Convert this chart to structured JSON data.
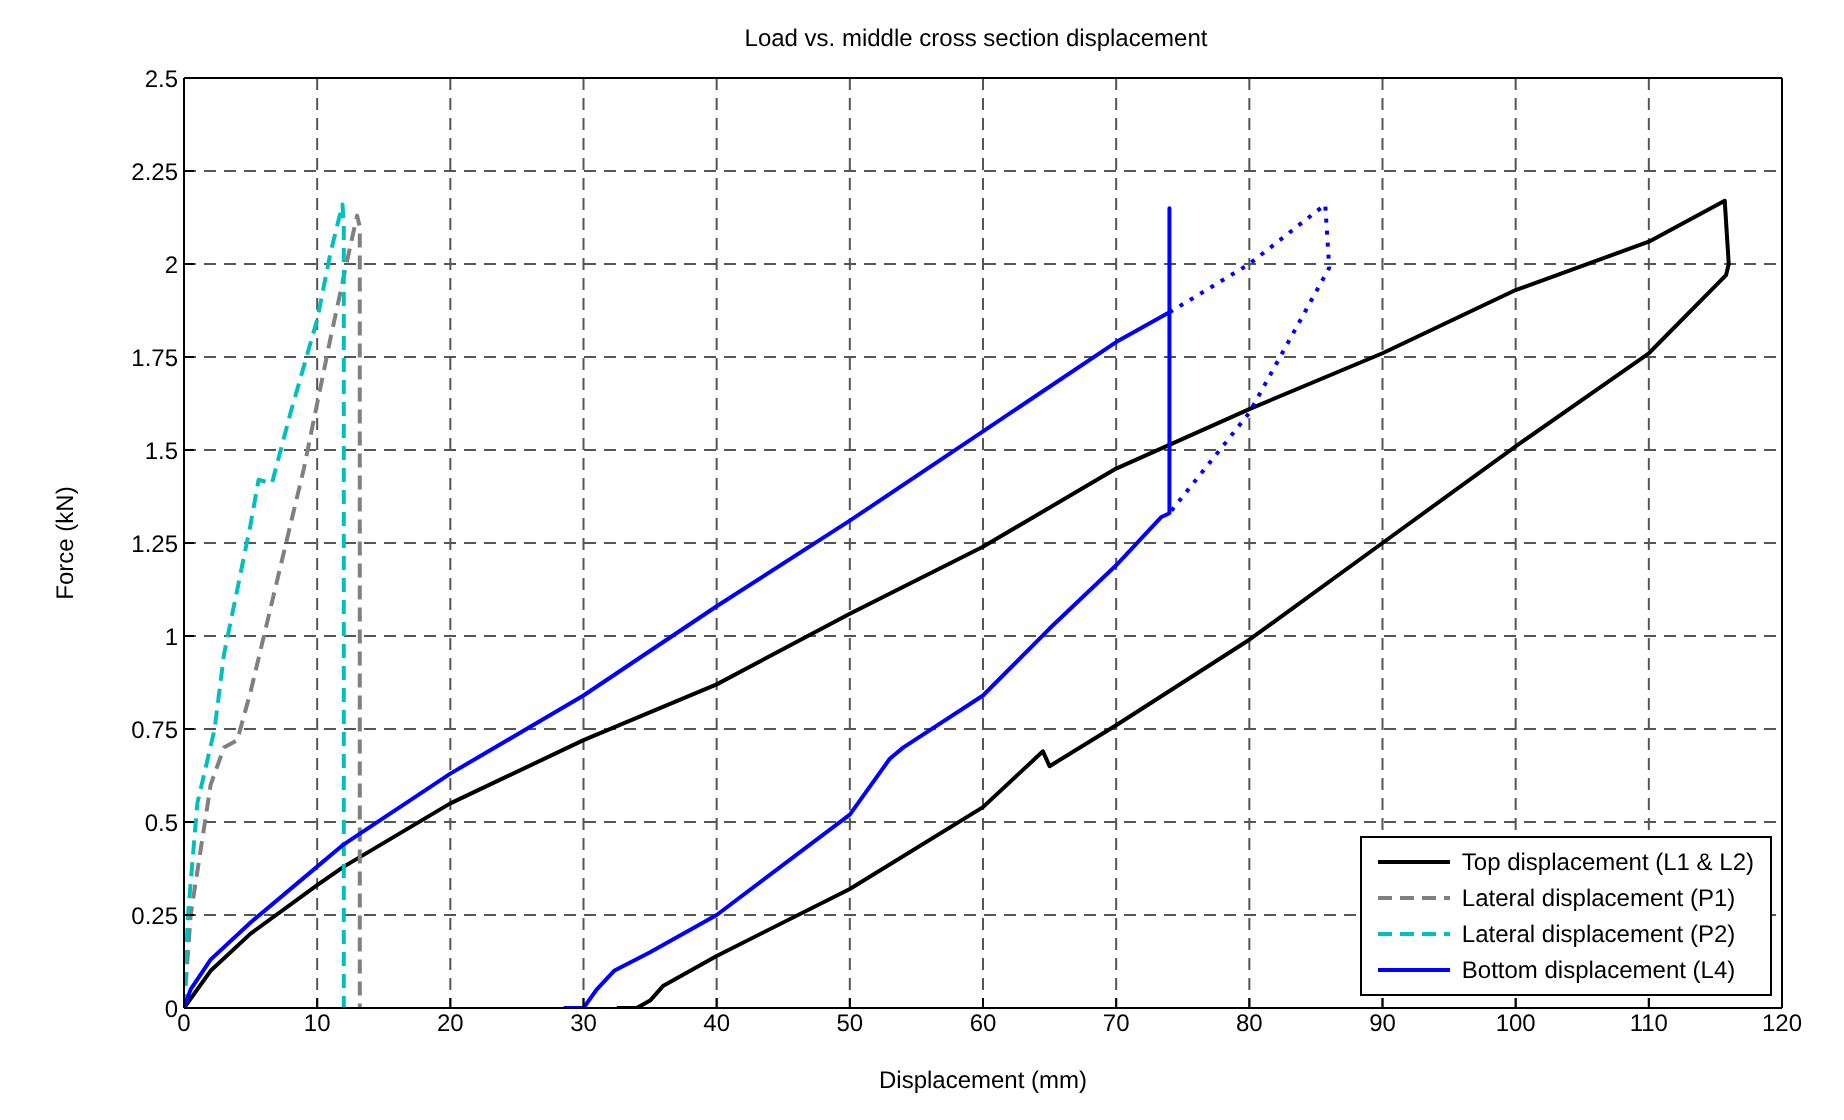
{
  "chart_data": {
    "type": "line",
    "title": "Load vs. middle cross section displacement",
    "xlabel": "Displacement (mm)",
    "ylabel": "Force (kN)",
    "xlim": [
      0,
      120
    ],
    "xticks": [
      0,
      10,
      20,
      30,
      40,
      50,
      60,
      70,
      80,
      90,
      100,
      110,
      120
    ],
    "ylim": [
      0,
      2.5
    ],
    "yticks": [
      0,
      0.25,
      0.5,
      0.75,
      1,
      1.25,
      1.5,
      1.75,
      2,
      2.25,
      2.5
    ],
    "grid": true,
    "legend": "bottom right",
    "marker": "none",
    "series": [
      {
        "name": "Top displacement (L1 & L2)",
        "color": "#000000",
        "line_style": "solid",
        "x": [
          0,
          2,
          5,
          10,
          12,
          20,
          30,
          40,
          50,
          60,
          70,
          80,
          90,
          100,
          110,
          115.7,
          116,
          115.8,
          110,
          100,
          90,
          80,
          70,
          65,
          64.5,
          60,
          50,
          40,
          36,
          35,
          34,
          32.5
        ],
        "values": [
          0,
          0.1,
          0.2,
          0.33,
          0.38,
          0.55,
          0.72,
          0.87,
          1.06,
          1.24,
          1.45,
          1.61,
          1.76,
          1.93,
          2.06,
          2.17,
          2.0,
          1.97,
          1.76,
          1.51,
          1.25,
          0.99,
          0.76,
          0.65,
          0.69,
          0.54,
          0.32,
          0.14,
          0.06,
          0.02,
          0,
          0
        ]
      },
      {
        "name": "Lateral displacement (P1)",
        "color": "#808080",
        "line_style": "dashed",
        "x": [
          0,
          0.5,
          2,
          3,
          4,
          5,
          7,
          9,
          11,
          12.5,
          13,
          13.2,
          13.2
        ],
        "values": [
          0,
          0.25,
          0.6,
          0.7,
          0.72,
          0.85,
          1.15,
          1.45,
          1.8,
          2.05,
          2.13,
          2.1,
          0
        ]
      },
      {
        "name": "Lateral displacement (P2)",
        "color": "#00bfbf",
        "line_style": "dashed",
        "x": [
          0,
          0.3,
          1,
          2.3,
          3,
          5,
          5.6,
          6.6,
          8,
          10,
          11,
          11.9,
          12,
          12
        ],
        "values": [
          0,
          0.25,
          0.55,
          0.75,
          0.95,
          1.3,
          1.42,
          1.41,
          1.6,
          1.85,
          2.03,
          2.16,
          2.1,
          0
        ]
      },
      {
        "name": "Bottom displacement (L4)",
        "color": "#0000ff",
        "line_style": "solid",
        "x": [
          0,
          0.5,
          2,
          5,
          10,
          12,
          20,
          30,
          40,
          50,
          60,
          70,
          74,
          74,
          74,
          73.4,
          70,
          65,
          60,
          54,
          53,
          50,
          40,
          35,
          32.3,
          31,
          30,
          28.5
        ],
        "values": [
          0,
          0.05,
          0.13,
          0.23,
          0.38,
          0.44,
          0.63,
          0.84,
          1.08,
          1.31,
          1.55,
          1.79,
          1.87,
          2.15,
          1.33,
          1.32,
          1.19,
          1.02,
          0.84,
          0.7,
          0.67,
          0.52,
          0.25,
          0.15,
          0.1,
          0.05,
          0,
          0
        ]
      },
      {
        "color": "#0000ff",
        "line_style": "dotted",
        "x": [
          74,
          80,
          85.7,
          86,
          80,
          74
        ],
        "values": [
          1.87,
          2.0,
          2.16,
          1.99,
          1.6,
          1.33
        ]
      }
    ]
  }
}
